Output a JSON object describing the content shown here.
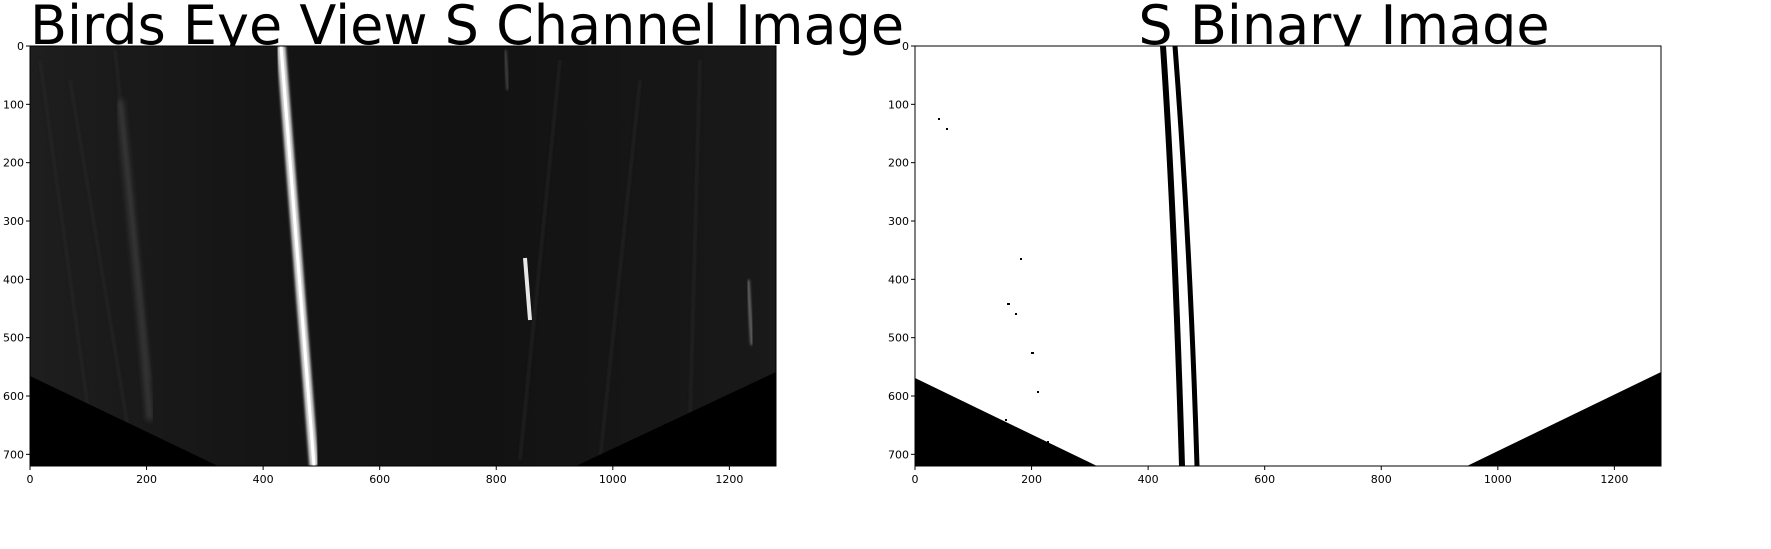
{
  "figures": [
    {
      "title": "Birds Eye View S Channel Image",
      "x_ticks": [
        "0",
        "200",
        "400",
        "600",
        "800",
        "1000",
        "1200"
      ],
      "y_ticks": [
        "0",
        "100",
        "200",
        "300",
        "400",
        "500",
        "600",
        "700"
      ],
      "x_range": [
        0,
        1280
      ],
      "y_range": [
        0,
        720
      ],
      "colors": {
        "background": "#0f0f0f",
        "lane_line": "#f2f2f2",
        "mask": "#000000"
      }
    },
    {
      "title": "S Binary Image",
      "x_ticks": [
        "0",
        "200",
        "400",
        "600",
        "800",
        "1000",
        "1200"
      ],
      "y_ticks": [
        "0",
        "100",
        "200",
        "300",
        "400",
        "500",
        "600",
        "700"
      ],
      "x_range": [
        0,
        1280
      ],
      "y_range": [
        0,
        720
      ],
      "colors": {
        "background": "#ffffff",
        "lane_line": "#000000",
        "mask": "#000000"
      }
    }
  ]
}
